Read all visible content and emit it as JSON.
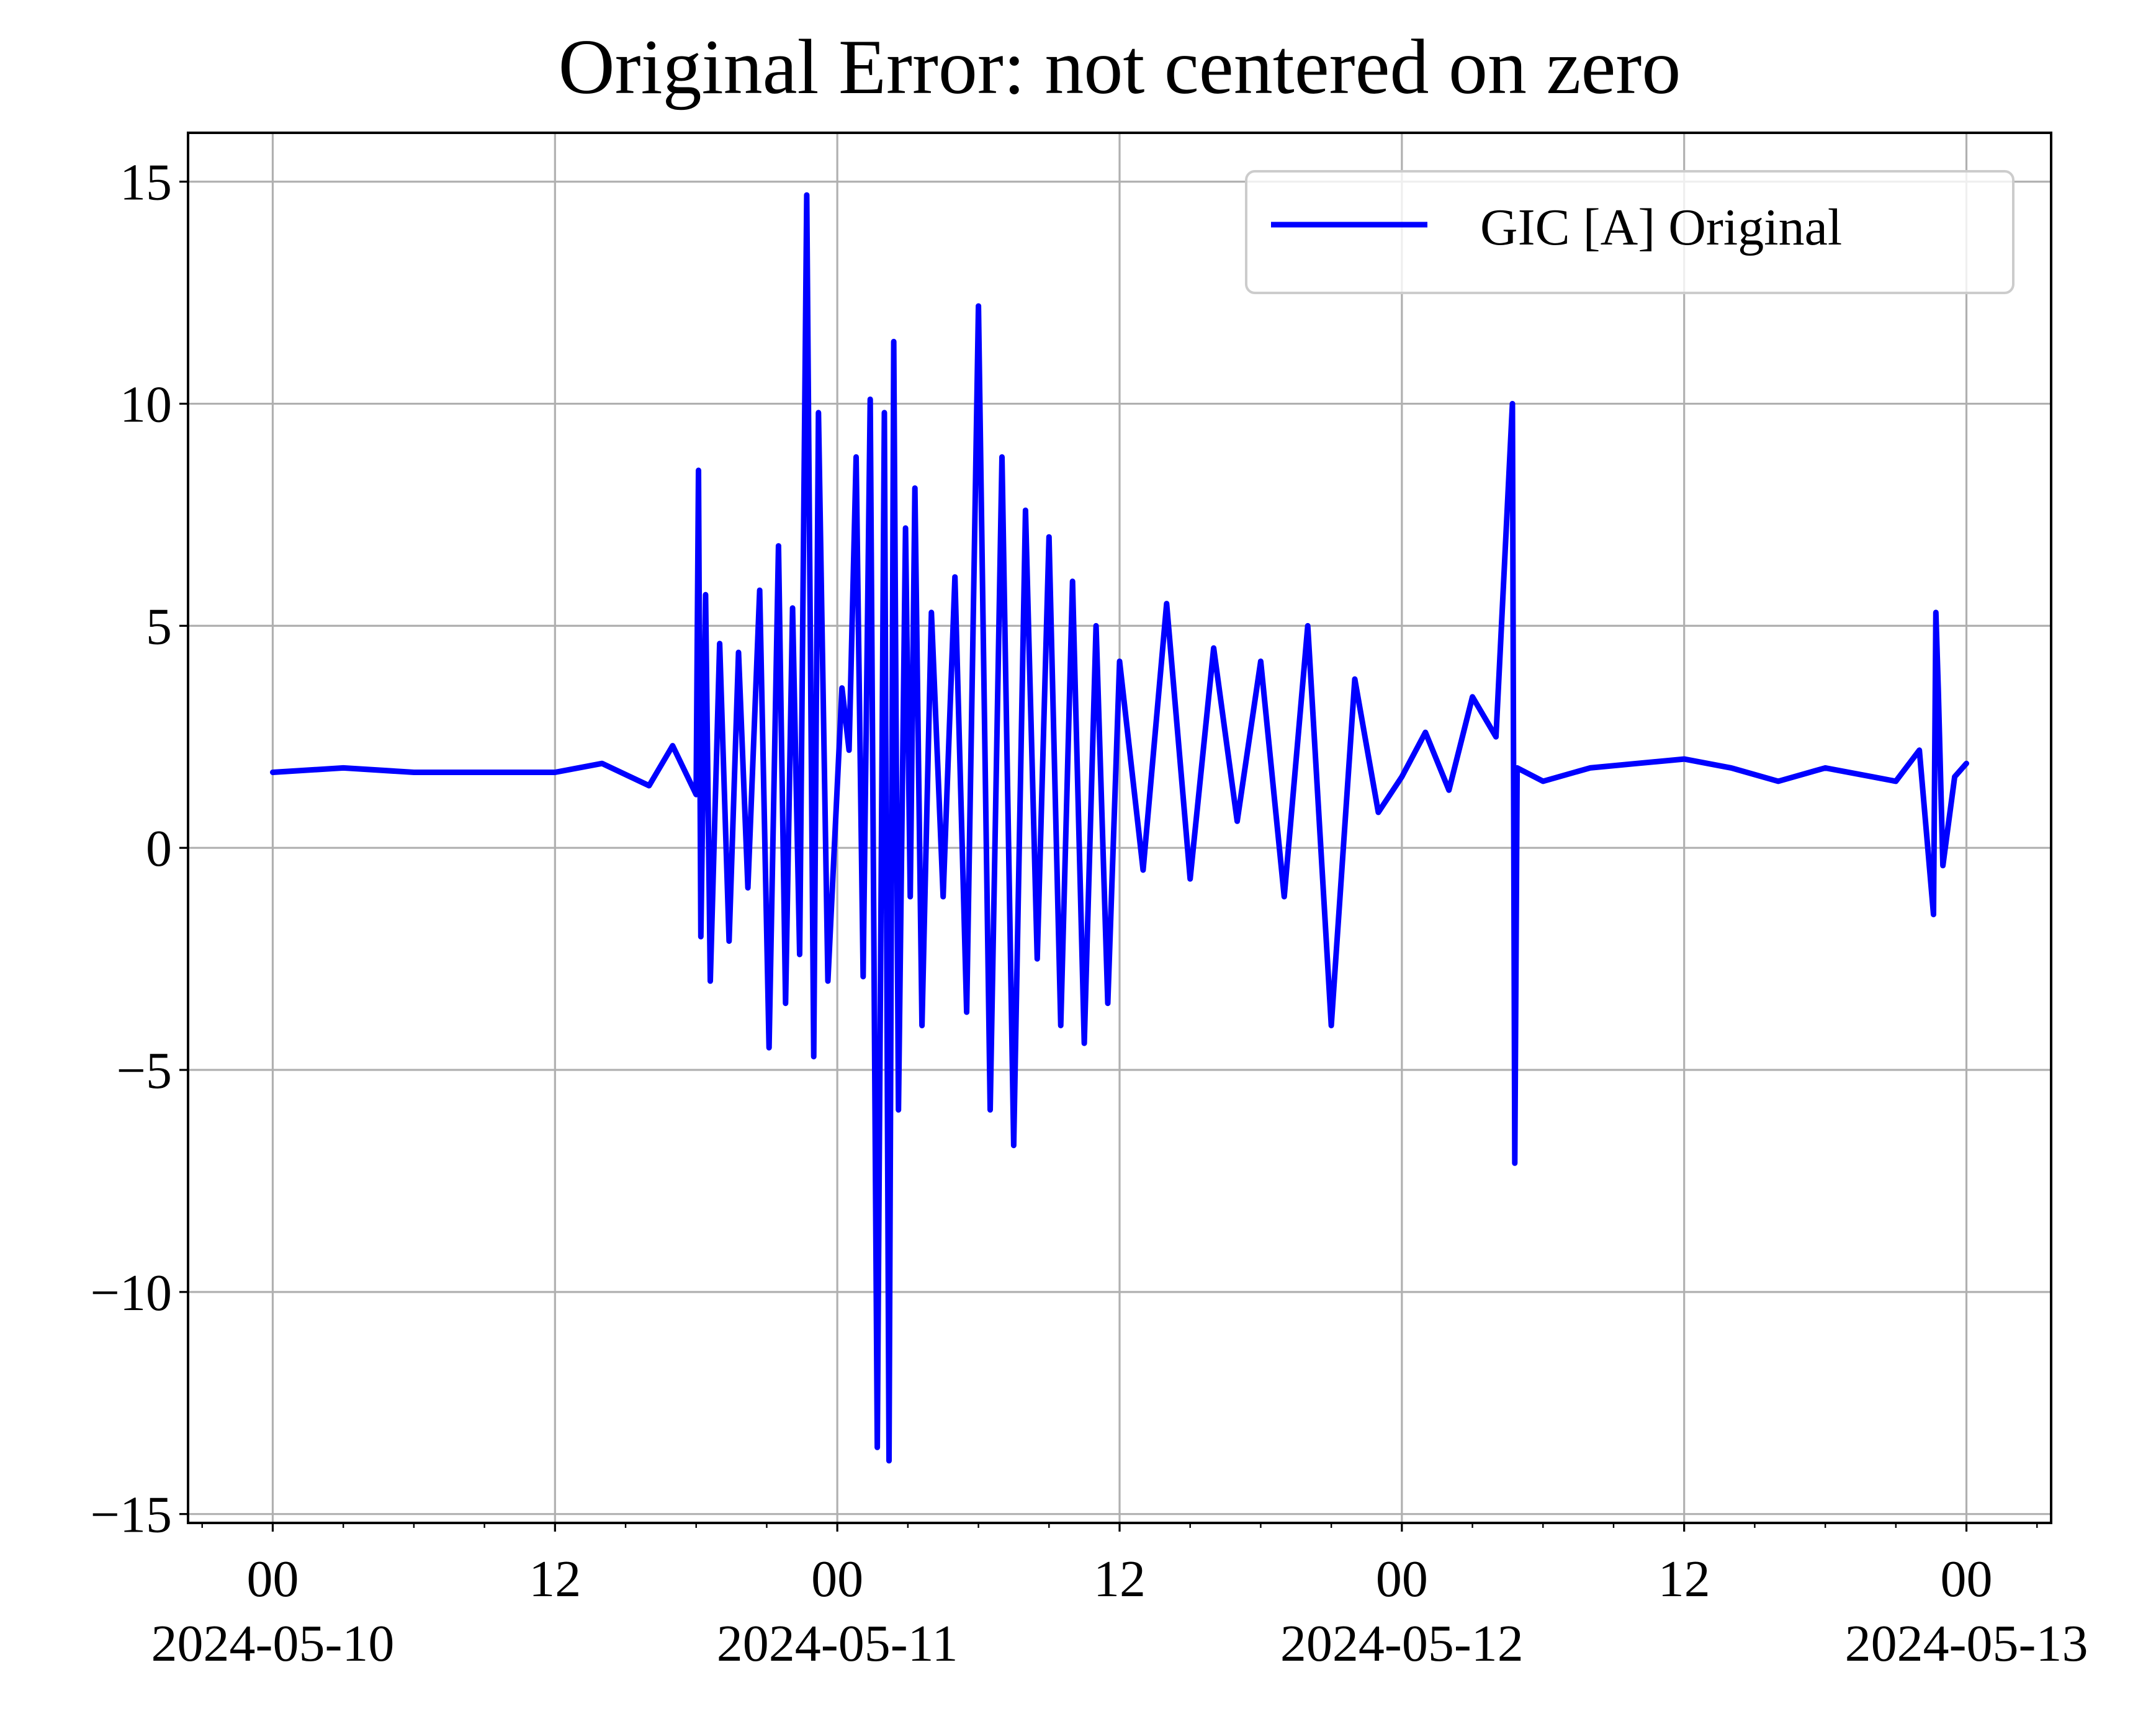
{
  "chart_data": {
    "type": "line",
    "title": "Original Error: not centered on zero",
    "xlabel": "",
    "ylabel": "",
    "grid": true,
    "legend": {
      "placement": "upper right",
      "entries": [
        "GIC [A] Original"
      ]
    },
    "ylim": [
      -15.2,
      16.1
    ],
    "xlim": [
      "2024-05-09T20:24",
      "2024-05-13T03:36"
    ],
    "y_ticks": [
      15,
      10,
      5,
      0,
      -5,
      -10,
      -15
    ],
    "y_tick_labels": [
      "15",
      "10",
      "5",
      "0",
      "−5",
      "−10",
      "−15"
    ],
    "x_ticks": [
      {
        "at": "2024-05-10T00:00",
        "label": "00",
        "date": "2024-05-10"
      },
      {
        "at": "2024-05-10T12:00",
        "label": "12",
        "date": ""
      },
      {
        "at": "2024-05-11T00:00",
        "label": "00",
        "date": "2024-05-11"
      },
      {
        "at": "2024-05-11T12:00",
        "label": "12",
        "date": ""
      },
      {
        "at": "2024-05-12T00:00",
        "label": "00",
        "date": "2024-05-12"
      },
      {
        "at": "2024-05-12T12:00",
        "label": "12",
        "date": ""
      },
      {
        "at": "2024-05-13T00:00",
        "label": "00",
        "date": "2024-05-13"
      }
    ],
    "series": [
      {
        "name": "GIC [A] Original",
        "color": "#0000ff",
        "x": [
          "2024-05-10T00:00",
          "2024-05-10T03:00",
          "2024-05-10T06:00",
          "2024-05-10T09:00",
          "2024-05-10T12:00",
          "2024-05-10T14:00",
          "2024-05-10T16:00",
          "2024-05-10T17:00",
          "2024-05-10T18:00",
          "2024-05-10T18:06",
          "2024-05-10T18:12",
          "2024-05-10T18:24",
          "2024-05-10T18:36",
          "2024-05-10T19:00",
          "2024-05-10T19:24",
          "2024-05-10T19:48",
          "2024-05-10T20:12",
          "2024-05-10T20:42",
          "2024-05-10T21:06",
          "2024-05-10T21:30",
          "2024-05-10T21:48",
          "2024-05-10T22:06",
          "2024-05-10T22:24",
          "2024-05-10T22:42",
          "2024-05-10T23:00",
          "2024-05-10T23:12",
          "2024-05-10T23:36",
          "2024-05-11T00:12",
          "2024-05-11T00:30",
          "2024-05-11T00:48",
          "2024-05-11T01:06",
          "2024-05-11T01:24",
          "2024-05-11T01:42",
          "2024-05-11T02:00",
          "2024-05-11T02:12",
          "2024-05-11T02:24",
          "2024-05-11T02:36",
          "2024-05-11T02:54",
          "2024-05-11T03:06",
          "2024-05-11T03:18",
          "2024-05-11T03:36",
          "2024-05-11T04:00",
          "2024-05-11T04:30",
          "2024-05-11T05:00",
          "2024-05-11T05:30",
          "2024-05-11T06:00",
          "2024-05-11T06:30",
          "2024-05-11T07:00",
          "2024-05-11T07:30",
          "2024-05-11T08:00",
          "2024-05-11T08:30",
          "2024-05-11T09:00",
          "2024-05-11T09:30",
          "2024-05-11T10:00",
          "2024-05-11T10:30",
          "2024-05-11T11:00",
          "2024-05-11T11:30",
          "2024-05-11T12:00",
          "2024-05-11T13:00",
          "2024-05-11T14:00",
          "2024-05-11T15:00",
          "2024-05-11T16:00",
          "2024-05-11T17:00",
          "2024-05-11T18:00",
          "2024-05-11T19:00",
          "2024-05-11T20:00",
          "2024-05-11T21:00",
          "2024-05-11T22:00",
          "2024-05-11T23:00",
          "2024-05-12T00:00",
          "2024-05-12T01:00",
          "2024-05-12T02:00",
          "2024-05-12T03:00",
          "2024-05-12T04:00",
          "2024-05-12T04:42",
          "2024-05-12T04:48",
          "2024-05-12T04:54",
          "2024-05-12T06:00",
          "2024-05-12T08:00",
          "2024-05-12T10:00",
          "2024-05-12T12:00",
          "2024-05-12T14:00",
          "2024-05-12T16:00",
          "2024-05-12T18:00",
          "2024-05-12T20:00",
          "2024-05-12T21:00",
          "2024-05-12T22:00",
          "2024-05-12T22:36",
          "2024-05-12T22:42",
          "2024-05-12T22:48",
          "2024-05-12T23:00",
          "2024-05-12T23:30",
          "2024-05-13T00:00"
        ],
        "y": [
          1.7,
          1.8,
          1.7,
          1.7,
          1.7,
          1.9,
          1.4,
          2.3,
          1.2,
          8.5,
          -2.0,
          5.7,
          -3.0,
          4.6,
          -2.1,
          4.4,
          -0.9,
          5.8,
          -4.5,
          6.8,
          -3.5,
          5.4,
          -2.4,
          14.7,
          -4.7,
          9.8,
          -3.0,
          3.6,
          2.2,
          8.8,
          -2.9,
          10.1,
          -13.5,
          9.8,
          -13.8,
          11.4,
          -5.9,
          7.2,
          -1.1,
          8.1,
          -4.0,
          5.3,
          -1.1,
          6.1,
          -3.7,
          12.2,
          -5.9,
          8.8,
          -6.7,
          7.6,
          -2.5,
          7.0,
          -4.0,
          6.0,
          -4.4,
          5.0,
          -3.5,
          4.2,
          -0.5,
          5.5,
          -0.7,
          4.5,
          0.6,
          4.2,
          -1.1,
          5.0,
          -4.0,
          3.8,
          0.8,
          1.6,
          2.6,
          1.3,
          3.4,
          2.5,
          10.0,
          -7.1,
          1.8,
          1.5,
          1.8,
          1.9,
          2.0,
          1.8,
          1.5,
          1.8,
          1.6,
          1.5,
          2.2,
          -1.5,
          5.3,
          3.6,
          -0.4,
          1.6,
          1.9
        ]
      }
    ]
  }
}
